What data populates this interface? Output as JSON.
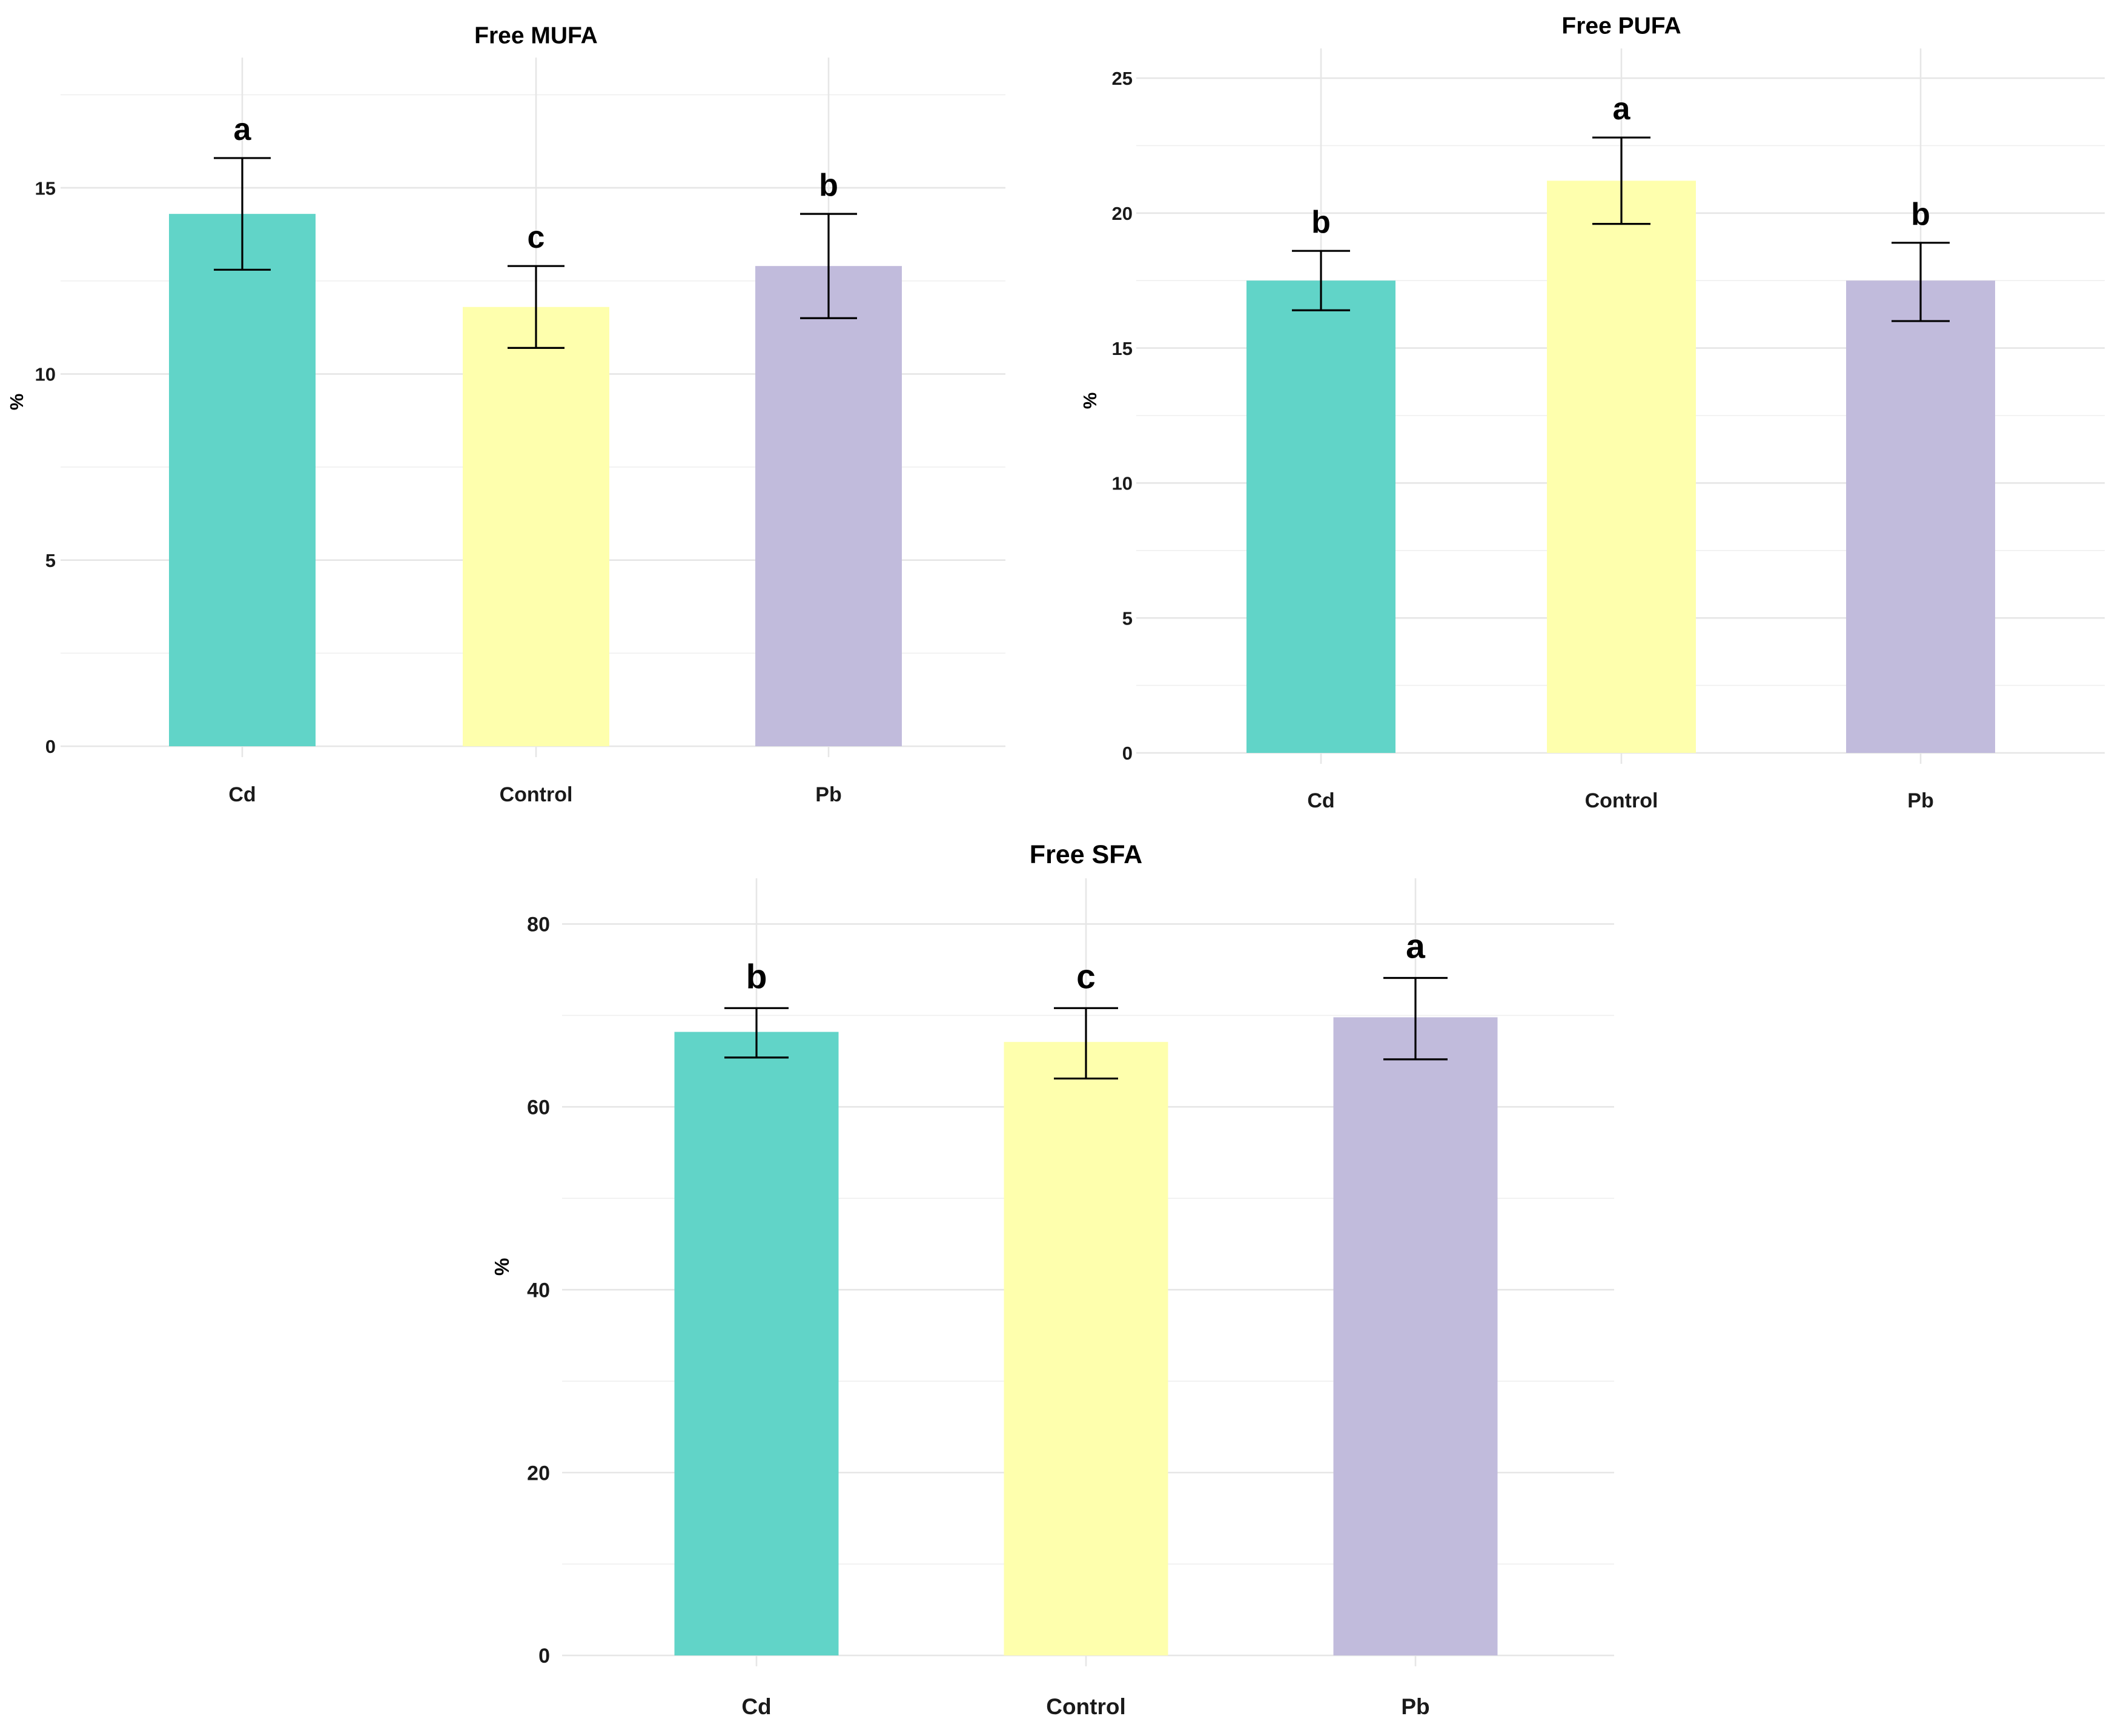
{
  "chart_data": [
    {
      "id": "mufa",
      "type": "bar",
      "title": "Free MUFA",
      "xlabel": "",
      "ylabel": "%",
      "ylim": [
        0,
        18.5
      ],
      "yticks": [
        0,
        5,
        10,
        15
      ],
      "grid": true,
      "categories": [
        "Cd",
        "Control",
        "Pb"
      ],
      "values": [
        14.3,
        11.8,
        12.9
      ],
      "error_low": [
        12.8,
        10.7,
        11.5
      ],
      "error_high": [
        15.8,
        12.9,
        14.3
      ],
      "significance": [
        "a",
        "c",
        "b"
      ],
      "colors": [
        "#61d4c8",
        "#feffad",
        "#c1bbdc"
      ]
    },
    {
      "id": "pufa",
      "type": "bar",
      "title": "Free PUFA",
      "xlabel": "",
      "ylabel": "%",
      "ylim": [
        0,
        26.1
      ],
      "yticks": [
        0,
        5,
        10,
        15,
        20,
        25
      ],
      "grid": true,
      "categories": [
        "Cd",
        "Control",
        "Pb"
      ],
      "values": [
        17.5,
        21.2,
        17.5
      ],
      "error_low": [
        16.4,
        19.6,
        16.0
      ],
      "error_high": [
        18.6,
        22.8,
        18.9
      ],
      "significance": [
        "b",
        "a",
        "b"
      ],
      "colors": [
        "#61d4c8",
        "#feffad",
        "#c1bbdc"
      ]
    },
    {
      "id": "sfa",
      "type": "bar",
      "title": "Free SFA",
      "xlabel": "",
      "ylabel": "%",
      "ylim": [
        0,
        85
      ],
      "yticks": [
        0,
        20,
        40,
        60,
        80
      ],
      "grid": true,
      "categories": [
        "Cd",
        "Control",
        "Pb"
      ],
      "values": [
        68.2,
        67.1,
        69.8
      ],
      "error_low": [
        65.4,
        63.1,
        65.2
      ],
      "error_high": [
        70.8,
        70.8,
        74.1
      ],
      "significance": [
        "b",
        "c",
        "a"
      ],
      "colors": [
        "#61d4c8",
        "#feffad",
        "#c1bbdc"
      ]
    }
  ]
}
